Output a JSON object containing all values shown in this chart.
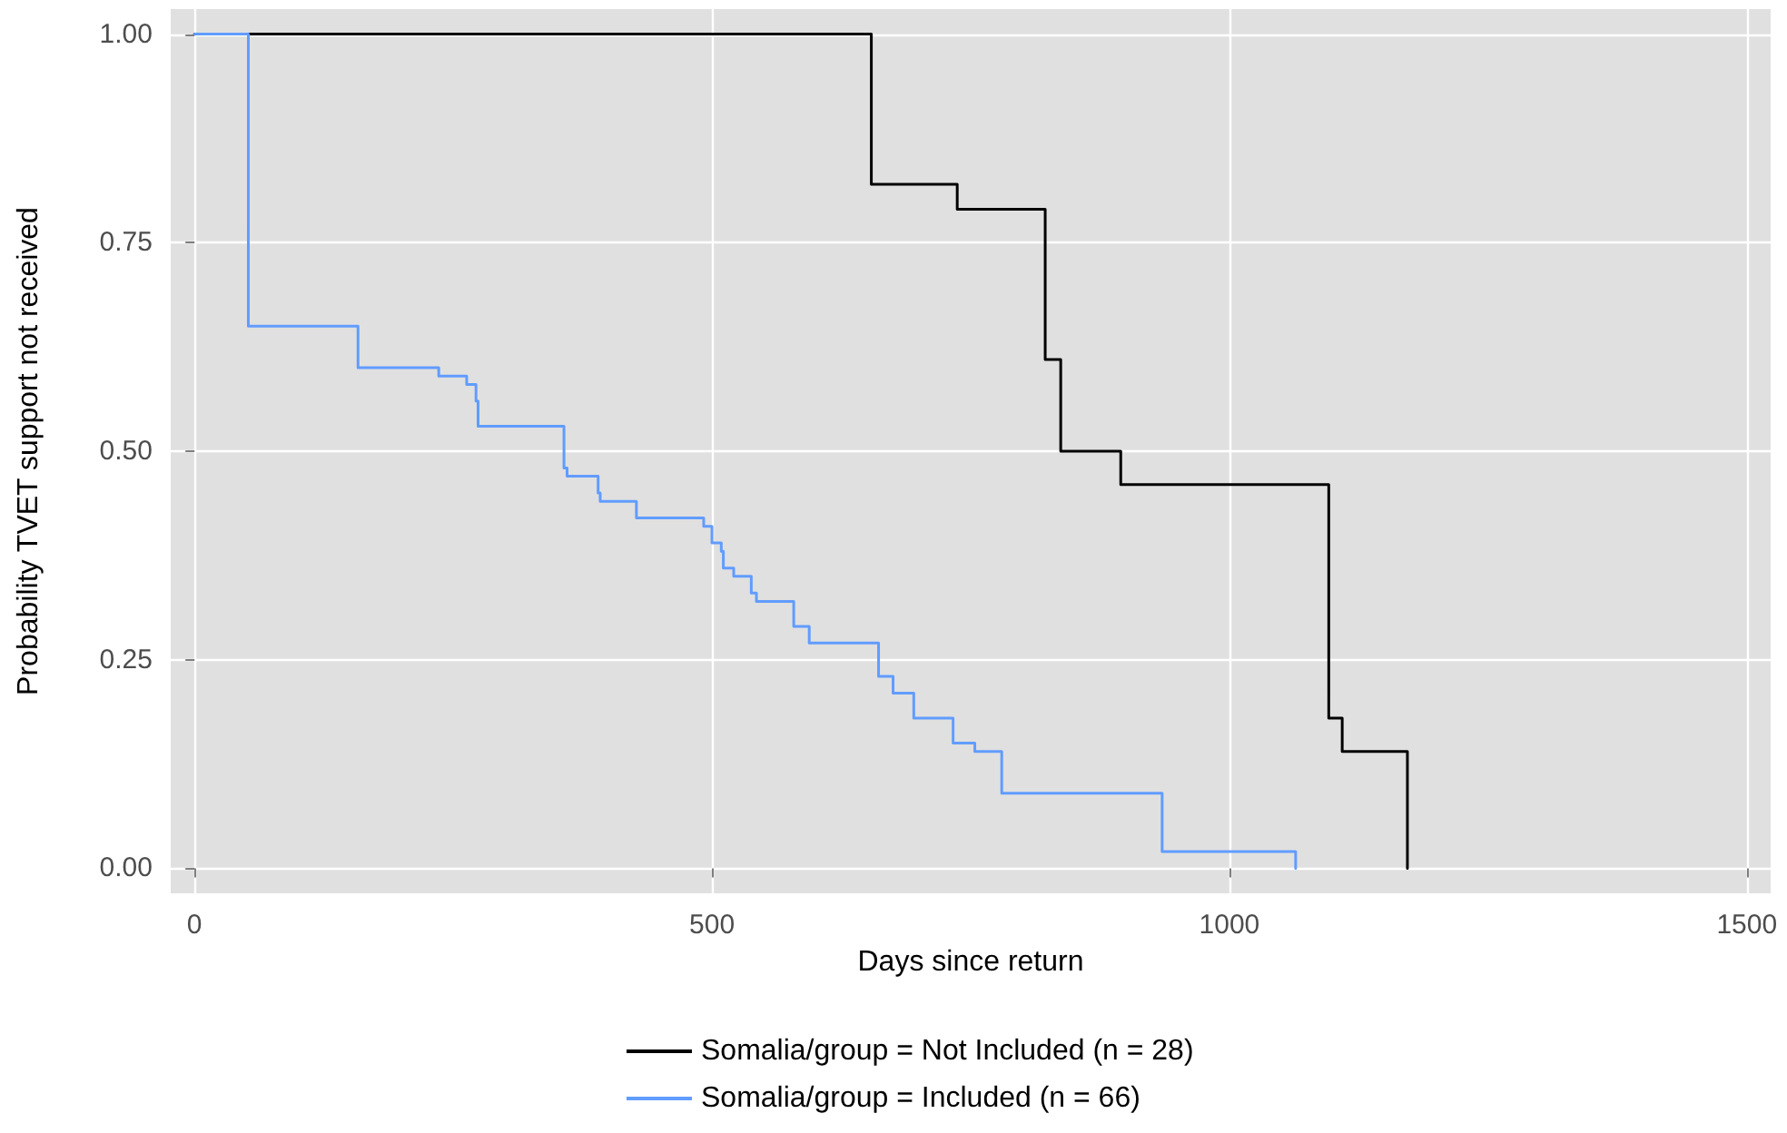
{
  "chart_data": {
    "type": "step",
    "xlabel": "Days since return",
    "ylabel": "Probability TVET support not received",
    "xlim": [
      -23,
      1523
    ],
    "xticks": [
      0,
      500,
      1000,
      1500
    ],
    "ylim": [
      -0.03,
      1.03
    ],
    "yticks": [
      {
        "value": 0,
        "label": "0.00"
      },
      {
        "value": 0.25,
        "label": "0.25"
      },
      {
        "value": 0.5,
        "label": "0.50"
      },
      {
        "value": 0.75,
        "label": "0.75"
      },
      {
        "value": 1,
        "label": "1.00"
      }
    ],
    "grid": true,
    "legend": "bottom",
    "marker": "none",
    "line_style": "solid",
    "series": [
      {
        "name": "Somalia/group = Not Included (n = 28)",
        "color": "#000000",
        "x": [
          0,
          654,
          737,
          822,
          837,
          895,
          1096,
          1109,
          1172
        ],
        "values": [
          1,
          0.82,
          0.79,
          0.61,
          0.5,
          0.46,
          0.18,
          0.14,
          0
        ]
      },
      {
        "name": "Somalia/group = Included (n = 66)",
        "color": "#619cff",
        "x": [
          0,
          52,
          158,
          236,
          263,
          272,
          274,
          357,
          360,
          390,
          392,
          427,
          492,
          500,
          509,
          511,
          521,
          538,
          543,
          579,
          594,
          661,
          675,
          695,
          733,
          754,
          780,
          935,
          1064
        ],
        "values": [
          1,
          0.65,
          0.6,
          0.59,
          0.58,
          0.56,
          0.53,
          0.48,
          0.47,
          0.45,
          0.44,
          0.42,
          0.41,
          0.39,
          0.38,
          0.36,
          0.35,
          0.33,
          0.32,
          0.29,
          0.27,
          0.23,
          0.21,
          0.18,
          0.15,
          0.14,
          0.09,
          0.02,
          0
        ]
      }
    ]
  }
}
